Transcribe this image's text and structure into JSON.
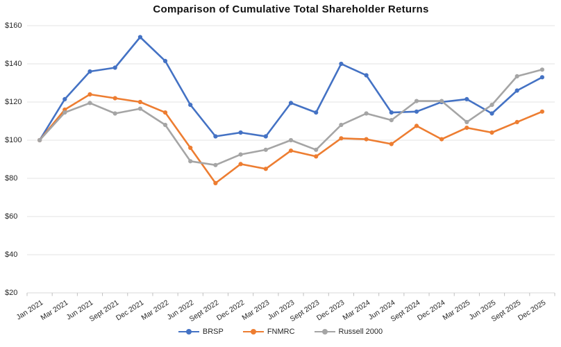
{
  "chart_data": {
    "type": "line",
    "title": "Comparison of Cumulative Total Shareholder Returns",
    "categories": [
      "Jan 2021",
      "Mar 2021",
      "Jun 2021",
      "Sept 2021",
      "Dec 2021",
      "Mar 2022",
      "Jun 2022",
      "Sept 2022",
      "Dec 2022",
      "Mar 2023",
      "Jun 2023",
      "Sept 2023",
      "Dec 2023",
      "Mar 2024",
      "Jun 2024",
      "Sept 2024",
      "Dec 2024",
      "Mar 2025",
      "Jun 2025",
      "Sept 2025",
      "Dec 2025"
    ],
    "series": [
      {
        "name": "BRSP",
        "color": "#4472C4",
        "values": [
          100,
          121.5,
          136,
          138,
          154,
          141.5,
          118.5,
          102,
          104,
          102,
          119.5,
          114.5,
          140,
          134,
          114.5,
          115,
          120,
          121.5,
          114,
          126,
          133
        ]
      },
      {
        "name": "FNMRC",
        "color": "#ED7D31",
        "values": [
          100,
          116,
          124,
          122,
          120,
          114.5,
          96,
          77.5,
          87.5,
          85,
          94.5,
          91.5,
          101,
          100.5,
          98,
          107.5,
          100.5,
          106.5,
          104,
          109.5,
          115
        ]
      },
      {
        "name": "Russell 2000",
        "color": "#A5A5A5",
        "values": [
          100,
          114.5,
          119.5,
          114,
          116.5,
          108,
          89,
          87,
          92.5,
          95,
          100,
          95,
          108,
          114,
          110.5,
          120.5,
          120.5,
          109.5,
          118.5,
          133.5,
          137
        ]
      }
    ],
    "y_axis": {
      "min": 20,
      "max": 160,
      "step": 20,
      "tick_prefix": "$",
      "tick_labels": [
        "$20",
        "$40",
        "$60",
        "$80",
        "$100",
        "$120",
        "$140",
        "$160"
      ]
    },
    "x_axis": {
      "rotation_deg": -33
    },
    "legend": {
      "position": "bottom",
      "entries": [
        "BRSP",
        "FNMRC",
        "Russell 2000"
      ]
    },
    "grid": true,
    "ylim": [
      20,
      160
    ],
    "colors": {
      "gridline": "#E3E3E3",
      "axis": "#D9D9D9",
      "tick": "#BFBFBF",
      "text": "#262626",
      "title": "#111111",
      "background": "#FFFFFF"
    }
  }
}
